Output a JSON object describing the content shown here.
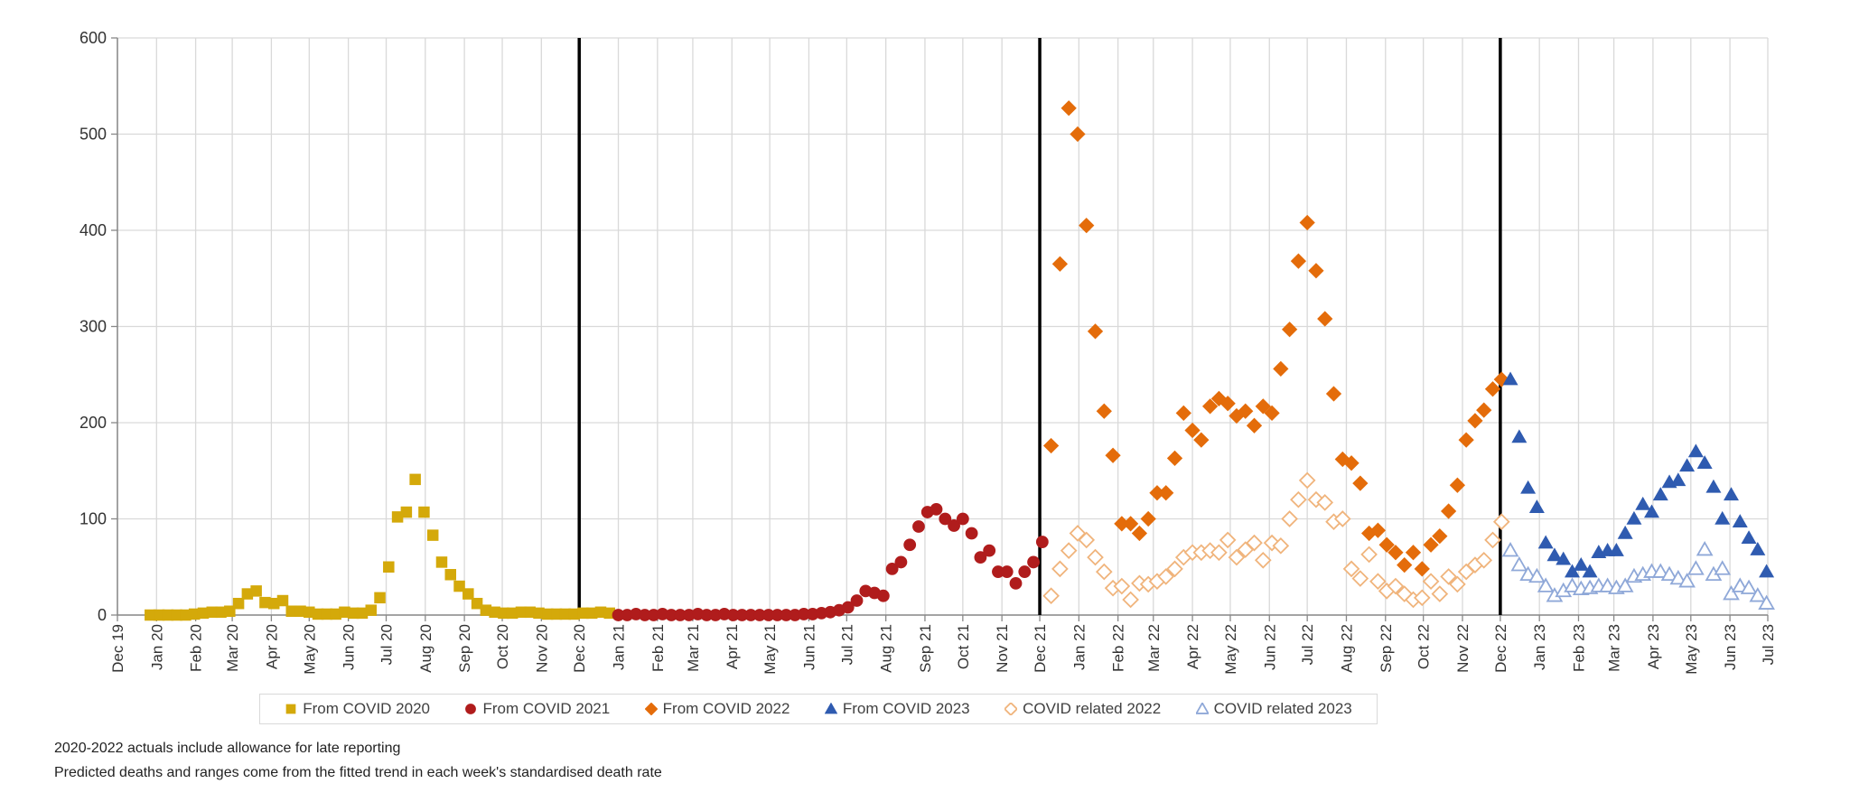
{
  "chart_data": {
    "type": "scatter",
    "title": "",
    "xlabel": "",
    "ylabel": "",
    "ylim": [
      0,
      600
    ],
    "y_ticks": [
      0,
      100,
      200,
      300,
      400,
      500,
      600
    ],
    "x_tick_labels": [
      "Dec 19",
      "Jan 20",
      "Feb 20",
      "Mar 20",
      "Apr 20",
      "May 20",
      "Jun 20",
      "Jul 20",
      "Aug 20",
      "Sep 20",
      "Oct 20",
      "Nov 20",
      "Dec 20",
      "Jan 21",
      "Feb 21",
      "Mar 21",
      "Apr 21",
      "May 21",
      "Jun 21",
      "Jul 21",
      "Aug 21",
      "Sep 21",
      "Oct 21",
      "Nov 21",
      "Dec 21",
      "Jan 22",
      "Feb 22",
      "Mar 22",
      "Apr 22",
      "May 22",
      "Jun 22",
      "Jul 22",
      "Aug 22",
      "Sep 22",
      "Oct 22",
      "Nov 22",
      "Dec 22",
      "Jan 23",
      "Feb 23",
      "Mar 23",
      "Apr 23",
      "May 23",
      "Jun 23",
      "Jul 23"
    ],
    "grid": true,
    "legend_placement": "bottom",
    "year_separators": [
      "Dec 20",
      "Dec 21",
      "Dec 22"
    ],
    "series": [
      {
        "name": "From COVID 2020",
        "marker": "square",
        "filled": true,
        "color": "#D4A90A",
        "x": [
          "2019-12-27",
          "2020-01-03",
          "2020-01-10",
          "2020-01-17",
          "2020-01-24",
          "2020-01-31",
          "2020-02-07",
          "2020-02-14",
          "2020-02-21",
          "2020-02-28",
          "2020-03-06",
          "2020-03-13",
          "2020-03-20",
          "2020-03-27",
          "2020-04-03",
          "2020-04-10",
          "2020-04-17",
          "2020-04-24",
          "2020-05-01",
          "2020-05-08",
          "2020-05-15",
          "2020-05-22",
          "2020-05-29",
          "2020-06-05",
          "2020-06-12",
          "2020-06-19",
          "2020-06-26",
          "2020-07-03",
          "2020-07-10",
          "2020-07-17",
          "2020-07-24",
          "2020-07-31",
          "2020-08-07",
          "2020-08-14",
          "2020-08-21",
          "2020-08-28",
          "2020-09-04",
          "2020-09-11",
          "2020-09-18",
          "2020-09-25",
          "2020-10-02",
          "2020-10-09",
          "2020-10-16",
          "2020-10-23",
          "2020-10-30",
          "2020-11-06",
          "2020-11-13",
          "2020-11-20",
          "2020-11-27",
          "2020-12-04",
          "2020-12-11",
          "2020-12-18",
          "2020-12-25"
        ],
        "y": [
          0,
          0,
          0,
          0,
          0,
          1,
          2,
          3,
          3,
          4,
          12,
          22,
          25,
          13,
          12,
          15,
          4,
          4,
          3,
          1,
          1,
          1,
          3,
          2,
          2,
          5,
          18,
          50,
          102,
          107,
          141,
          107,
          83,
          55,
          42,
          30,
          22,
          12,
          5,
          3,
          2,
          2,
          3,
          3,
          2,
          1,
          1,
          1,
          1,
          2,
          2,
          3,
          2
        ]
      },
      {
        "name": "From COVID 2021",
        "marker": "circle",
        "filled": true,
        "color": "#B01C1C",
        "x": [
          "2021-01-01",
          "2021-01-08",
          "2021-01-15",
          "2021-01-22",
          "2021-01-29",
          "2021-02-05",
          "2021-02-12",
          "2021-02-19",
          "2021-02-26",
          "2021-03-05",
          "2021-03-12",
          "2021-03-19",
          "2021-03-26",
          "2021-04-02",
          "2021-04-09",
          "2021-04-16",
          "2021-04-23",
          "2021-04-30",
          "2021-05-07",
          "2021-05-14",
          "2021-05-21",
          "2021-05-28",
          "2021-06-04",
          "2021-06-11",
          "2021-06-18",
          "2021-06-25",
          "2021-07-02",
          "2021-07-09",
          "2021-07-16",
          "2021-07-23",
          "2021-07-30",
          "2021-08-06",
          "2021-08-13",
          "2021-08-20",
          "2021-08-27",
          "2021-09-03",
          "2021-09-10",
          "2021-09-17",
          "2021-09-24",
          "2021-10-01",
          "2021-10-08",
          "2021-10-15",
          "2021-10-22",
          "2021-10-29",
          "2021-11-05",
          "2021-11-12",
          "2021-11-19",
          "2021-11-26",
          "2021-12-03"
        ],
        "y": [
          0,
          0,
          1,
          0,
          0,
          1,
          0,
          0,
          0,
          1,
          0,
          0,
          1,
          0,
          0,
          0,
          0,
          0,
          0,
          0,
          0,
          1,
          1,
          2,
          3,
          5,
          8,
          15,
          25,
          23,
          20,
          48,
          55,
          73,
          92,
          107,
          110,
          100,
          93,
          100,
          85,
          60,
          67,
          45,
          45,
          33,
          45,
          55,
          76
        ]
      },
      {
        "name": "From COVID 2022",
        "marker": "diamond",
        "filled": true,
        "color": "#E46C0A",
        "x": [
          "2021-12-10",
          "2021-12-17",
          "2021-12-24",
          "2021-12-31",
          "2022-01-07",
          "2022-01-14",
          "2022-01-21",
          "2022-01-28",
          "2022-02-04",
          "2022-02-11",
          "2022-02-18",
          "2022-02-25",
          "2022-03-04",
          "2022-03-11",
          "2022-03-18",
          "2022-03-25",
          "2022-04-01",
          "2022-04-08",
          "2022-04-15",
          "2022-04-22",
          "2022-04-29",
          "2022-05-06",
          "2022-05-13",
          "2022-05-20",
          "2022-05-27",
          "2022-06-03",
          "2022-06-10",
          "2022-06-17",
          "2022-06-24",
          "2022-07-01",
          "2022-07-08",
          "2022-07-15",
          "2022-07-22",
          "2022-07-29",
          "2022-08-05",
          "2022-08-12",
          "2022-08-19",
          "2022-08-26",
          "2022-09-02",
          "2022-09-09",
          "2022-09-16",
          "2022-09-23",
          "2022-09-30",
          "2022-10-07",
          "2022-10-14",
          "2022-10-21",
          "2022-10-28",
          "2022-11-04",
          "2022-11-11",
          "2022-11-18",
          "2022-11-25",
          "2022-12-02"
        ],
        "y": [
          176,
          365,
          527,
          500,
          405,
          295,
          212,
          166,
          95,
          95,
          85,
          100,
          127,
          127,
          163,
          210,
          192,
          182,
          217,
          225,
          220,
          207,
          212,
          197,
          217,
          210,
          256,
          297,
          368,
          408,
          358,
          308,
          230,
          162,
          158,
          137,
          85,
          88,
          73,
          65,
          52,
          65,
          48,
          73,
          82,
          108,
          135,
          182,
          202,
          213,
          235,
          245
        ]
      },
      {
        "name": "From COVID 2023",
        "marker": "triangle",
        "filled": true,
        "color": "#2F5BB0",
        "x": [
          "2022-12-09",
          "2022-12-16",
          "2022-12-23",
          "2022-12-30",
          "2023-01-06",
          "2023-01-13",
          "2023-01-20",
          "2023-01-27",
          "2023-02-03",
          "2023-02-10",
          "2023-02-17",
          "2023-02-24",
          "2023-03-03",
          "2023-03-10",
          "2023-03-17",
          "2023-03-24",
          "2023-03-31",
          "2023-04-07",
          "2023-04-14",
          "2023-04-21",
          "2023-04-28",
          "2023-05-05",
          "2023-05-12",
          "2023-05-19",
          "2023-05-26",
          "2023-06-02",
          "2023-06-09",
          "2023-06-16",
          "2023-06-23",
          "2023-06-30"
        ],
        "y": [
          245,
          185,
          132,
          112,
          75,
          62,
          58,
          45,
          52,
          45,
          65,
          67,
          67,
          85,
          100,
          115,
          107,
          125,
          138,
          140,
          155,
          170,
          158,
          133,
          100,
          125,
          97,
          80,
          68,
          45
        ]
      },
      {
        "name": "COVID related 2022",
        "marker": "diamond",
        "filled": false,
        "color": "#F0B47C",
        "x": [
          "2021-12-10",
          "2021-12-17",
          "2021-12-24",
          "2021-12-31",
          "2022-01-07",
          "2022-01-14",
          "2022-01-21",
          "2022-01-28",
          "2022-02-04",
          "2022-02-11",
          "2022-02-18",
          "2022-02-25",
          "2022-03-04",
          "2022-03-11",
          "2022-03-18",
          "2022-03-25",
          "2022-04-01",
          "2022-04-08",
          "2022-04-15",
          "2022-04-22",
          "2022-04-29",
          "2022-05-06",
          "2022-05-13",
          "2022-05-20",
          "2022-05-27",
          "2022-06-03",
          "2022-06-10",
          "2022-06-17",
          "2022-06-24",
          "2022-07-01",
          "2022-07-08",
          "2022-07-15",
          "2022-07-22",
          "2022-07-29",
          "2022-08-05",
          "2022-08-12",
          "2022-08-19",
          "2022-08-26",
          "2022-09-02",
          "2022-09-09",
          "2022-09-16",
          "2022-09-23",
          "2022-09-30",
          "2022-10-07",
          "2022-10-14",
          "2022-10-21",
          "2022-10-28",
          "2022-11-04",
          "2022-11-11",
          "2022-11-18",
          "2022-11-25",
          "2022-12-02"
        ],
        "y": [
          20,
          48,
          67,
          85,
          78,
          60,
          45,
          28,
          30,
          16,
          33,
          32,
          35,
          40,
          48,
          60,
          65,
          65,
          67,
          65,
          78,
          60,
          68,
          75,
          57,
          75,
          72,
          100,
          120,
          140,
          120,
          117,
          97,
          100,
          48,
          38,
          63,
          35,
          25,
          30,
          22,
          16,
          18,
          35,
          22,
          40,
          32,
          45,
          52,
          57,
          78,
          97
        ]
      },
      {
        "name": "COVID related 2023",
        "marker": "triangle",
        "filled": false,
        "color": "#8FA8D8",
        "x": [
          "2022-12-09",
          "2022-12-16",
          "2022-12-23",
          "2022-12-30",
          "2023-01-06",
          "2023-01-13",
          "2023-01-20",
          "2023-01-27",
          "2023-02-03",
          "2023-02-10",
          "2023-02-17",
          "2023-02-24",
          "2023-03-03",
          "2023-03-10",
          "2023-03-17",
          "2023-03-24",
          "2023-03-31",
          "2023-04-07",
          "2023-04-14",
          "2023-04-21",
          "2023-04-28",
          "2023-05-05",
          "2023-05-12",
          "2023-05-19",
          "2023-05-26",
          "2023-06-02",
          "2023-06-09",
          "2023-06-16",
          "2023-06-23",
          "2023-06-30"
        ],
        "y": [
          67,
          52,
          42,
          40,
          30,
          20,
          25,
          30,
          27,
          28,
          30,
          30,
          28,
          30,
          40,
          42,
          45,
          45,
          42,
          38,
          35,
          48,
          68,
          42,
          48,
          22,
          30,
          28,
          20,
          12
        ]
      }
    ]
  },
  "notes": [
    "2020-2022  actuals include allowance for late reporting",
    "Predicted deaths and ranges come from the fitted trend in each week's standardised death rate"
  ]
}
